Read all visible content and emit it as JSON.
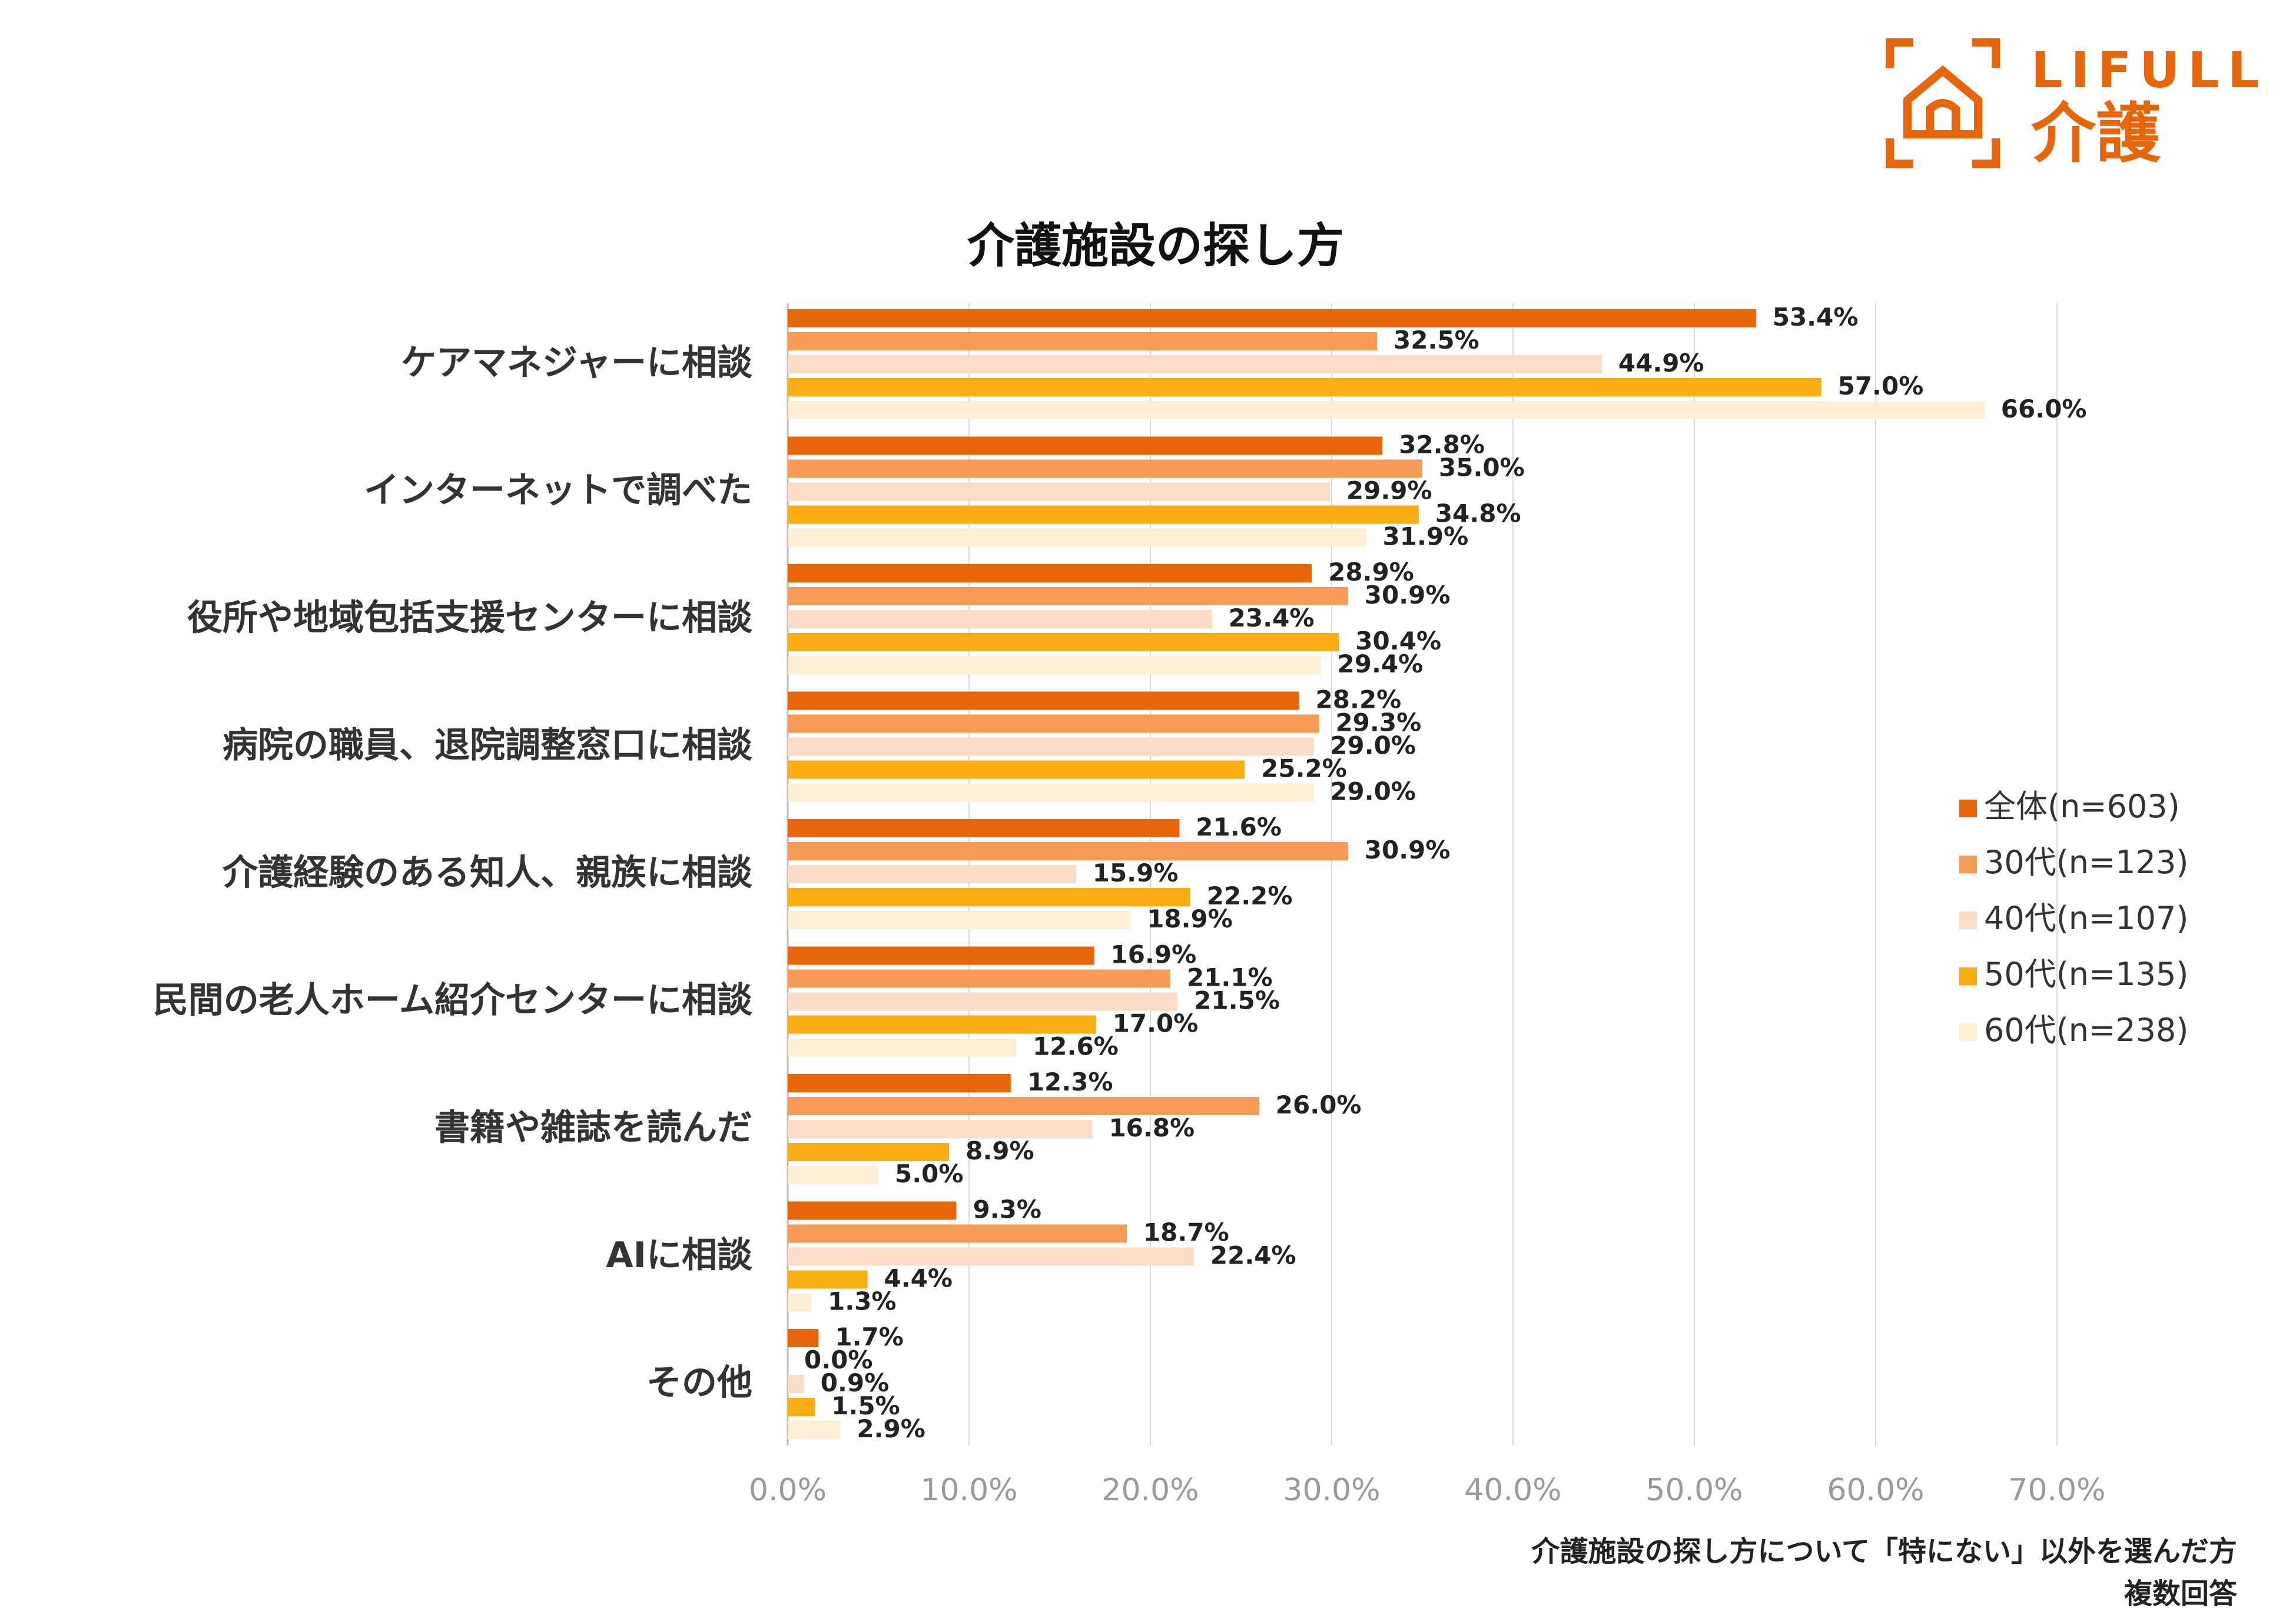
{
  "logo": {
    "brand": "LIFULL",
    "service": "介護"
  },
  "chart_data": {
    "type": "bar",
    "orientation": "horizontal",
    "title": "介護施設の探し方",
    "categories": [
      "ケアマネジャーに相談",
      "インターネットで調べた",
      "役所や地域包括支援センターに相談",
      "病院の職員、退院調整窓口に相談",
      "介護経験のある知人、親族に相談",
      "民間の老人ホーム紹介センターに相談",
      "書籍や雑誌を読んだ",
      "AIに相談",
      "その他"
    ],
    "series": [
      {
        "name": "全体(n=603)",
        "color": "#E8650A",
        "values": [
          53.4,
          32.8,
          28.9,
          28.2,
          21.6,
          16.9,
          12.3,
          9.3,
          1.7
        ]
      },
      {
        "name": "30代(n=123)",
        "color": "#F79A55",
        "values": [
          32.5,
          35.0,
          30.9,
          29.3,
          30.9,
          21.1,
          26.0,
          18.7,
          0.0
        ]
      },
      {
        "name": "40代(n=107)",
        "color": "#FCDCC7",
        "values": [
          44.9,
          29.9,
          23.4,
          29.0,
          15.9,
          21.5,
          16.8,
          22.4,
          0.9
        ]
      },
      {
        "name": "50代(n=135)",
        "color": "#FBAE14",
        "values": [
          57.0,
          34.8,
          30.4,
          25.2,
          22.2,
          17.0,
          8.9,
          4.4,
          1.5
        ]
      },
      {
        "name": "60代(n=238)",
        "color": "#FDEFD4",
        "values": [
          66.0,
          31.9,
          29.4,
          29.0,
          18.9,
          12.6,
          5.0,
          1.3,
          2.9
        ]
      }
    ],
    "xlim": [
      0,
      70
    ],
    "xticks": [
      0,
      10,
      20,
      30,
      40,
      50,
      60,
      70
    ],
    "tick_suffix": "%",
    "legend_position": "right",
    "grid": true
  },
  "footnote": {
    "line1": "介護施設の探し方について「特にない」以外を選んだ方",
    "line2": "複数回答"
  }
}
